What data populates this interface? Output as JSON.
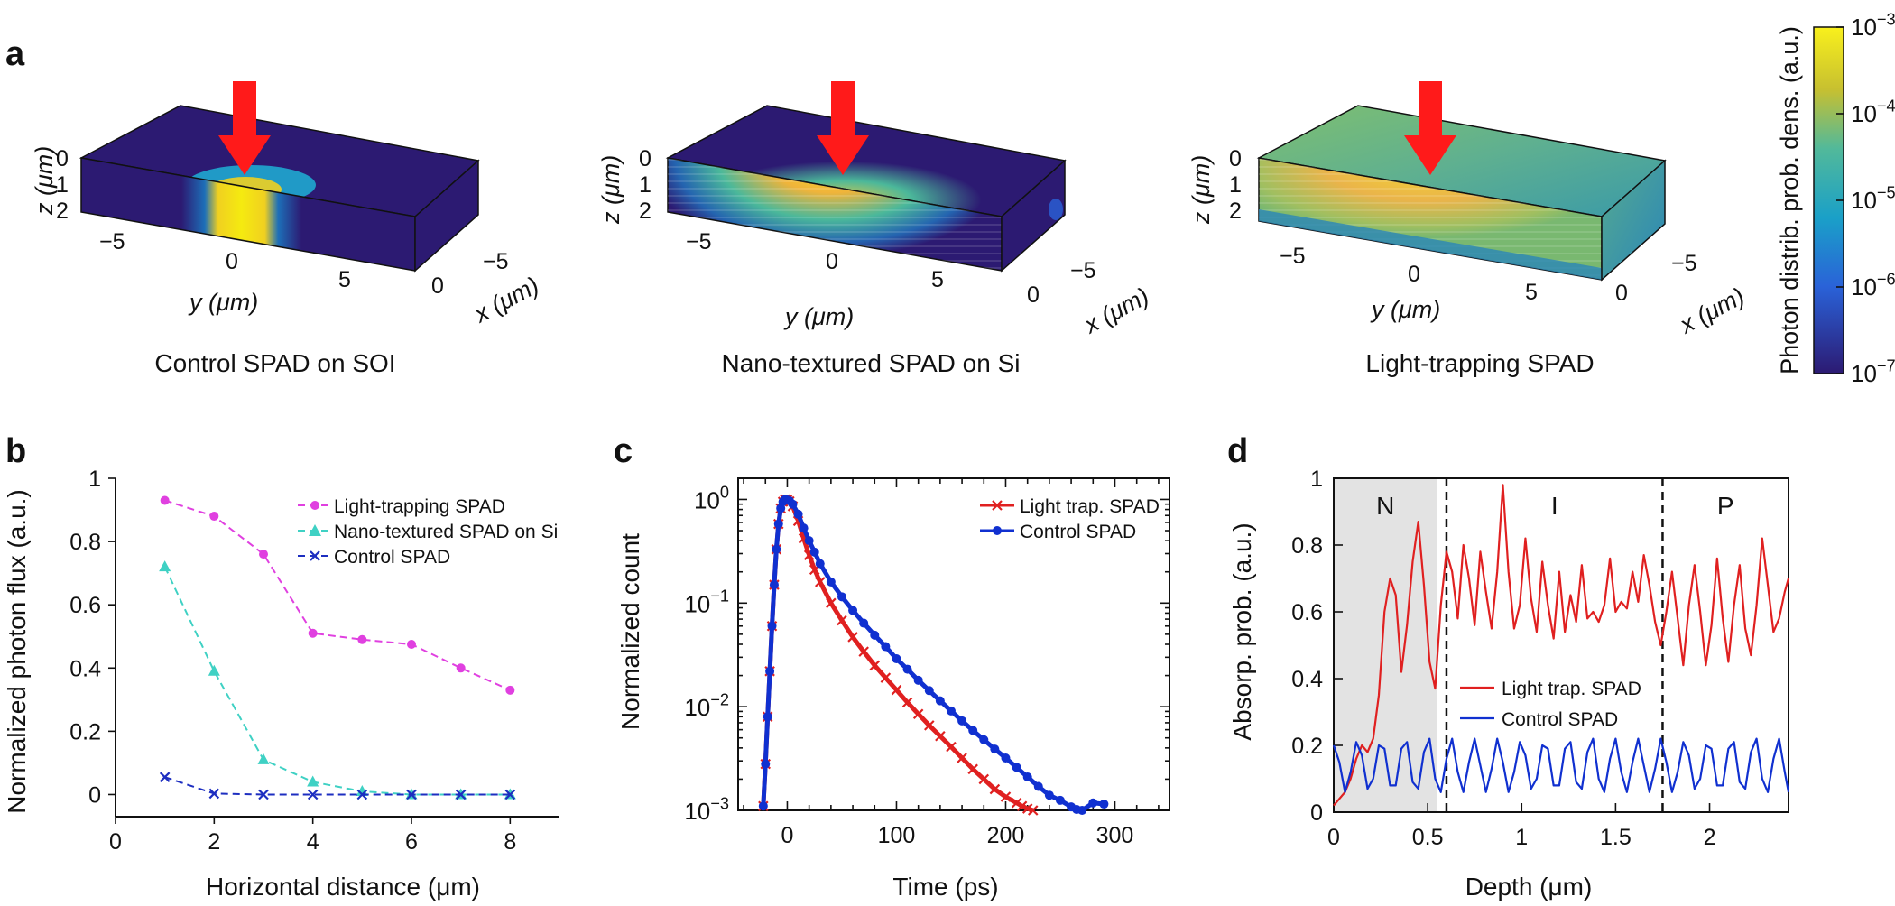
{
  "colors": {
    "magenta": "#e040e0",
    "teal": "#3fd1c4",
    "navy": "#1d2ec0",
    "red": "#e02020",
    "blue": "#1030d0",
    "dark": "#2c1a72",
    "yellow": "#f5ea10",
    "orange": "#f0b43a",
    "arrow": "#ff1a1a",
    "shade": "#e3e3e3"
  },
  "chart_data": [
    {
      "panel": "a",
      "type": "heatmap",
      "panel_label": "a",
      "subplots": [
        {
          "title": "Control SPAD on SOI",
          "zlabel": "z (μm)",
          "ylabel": "y (μm)",
          "xlabel": "x (μm)",
          "z_ticks": [
            "0",
            "1",
            "2"
          ],
          "y_ticks": [
            "−5",
            "0",
            "5"
          ],
          "x_ticks": [
            "−5",
            "0"
          ]
        },
        {
          "title": "Nano-textured SPAD on Si",
          "zlabel": "z (μm)",
          "ylabel": "y (μm)",
          "xlabel": "x (μm)",
          "z_ticks": [
            "0",
            "1",
            "2"
          ],
          "y_ticks": [
            "−5",
            "0",
            "5"
          ],
          "x_ticks": [
            "−5",
            "0"
          ]
        },
        {
          "title": "Light-trapping SPAD",
          "zlabel": "z (μm)",
          "ylabel": "y (μm)",
          "xlabel": "x (μm)",
          "z_ticks": [
            "0",
            "1",
            "2"
          ],
          "y_ticks": [
            "−5",
            "0",
            "5"
          ],
          "x_ticks": [
            "−5",
            "0"
          ]
        }
      ],
      "colorbar": {
        "label": "Photon distrib. prob. dens. (a.u.)",
        "scale": "log",
        "range": [
          1e-07,
          0.001
        ],
        "tick_labels": [
          {
            "base": "10",
            "exp": "−3"
          },
          {
            "base": "10",
            "exp": "−4"
          },
          {
            "base": "10",
            "exp": "−5"
          },
          {
            "base": "10",
            "exp": "−6"
          },
          {
            "base": "10",
            "exp": "−7"
          }
        ]
      }
    },
    {
      "panel": "b",
      "type": "line",
      "panel_label": "b",
      "xlabel": "Horizontal distance (μm)",
      "ylabel": "Normalized photon flux (a.u.)",
      "xlim": [
        0,
        9
      ],
      "ylim": [
        -0.07,
        1
      ],
      "x_ticks": [
        "0",
        "2",
        "4",
        "6",
        "8"
      ],
      "y_ticks": [
        "0",
        "0.2",
        "0.4",
        "0.6",
        "0.8",
        "1"
      ],
      "x": [
        1,
        2,
        3,
        4,
        5,
        6,
        7,
        8
      ],
      "series": [
        {
          "name": "Light-trapping SPAD",
          "marker": "circle",
          "values": [
            0.93,
            0.88,
            0.76,
            0.51,
            0.49,
            0.475,
            0.4,
            0.33
          ]
        },
        {
          "name": "Nano-textured SPAD on Si",
          "marker": "triangle",
          "values": [
            0.72,
            0.39,
            0.11,
            0.04,
            0.01,
            0.0,
            0.0,
            0.0
          ]
        },
        {
          "name": "Control SPAD",
          "marker": "x",
          "values": [
            0.055,
            0.003,
            0.0,
            0.0,
            0.0,
            0.0,
            0.0,
            0.0
          ]
        }
      ]
    },
    {
      "panel": "c",
      "type": "line",
      "panel_label": "c",
      "xlabel": "Time (ps)",
      "ylabel": "Normalized count",
      "yscale": "log",
      "xlim": [
        -45,
        350
      ],
      "ylim": [
        0.001,
        1.6
      ],
      "x_ticks": [
        "0",
        "100",
        "200",
        "300"
      ],
      "y_tick_labels": [
        {
          "base": "10",
          "exp": "0"
        },
        {
          "base": "10",
          "exp": "−1"
        },
        {
          "base": "10",
          "exp": "−2"
        },
        {
          "base": "10",
          "exp": "−3"
        }
      ],
      "series": [
        {
          "name": "Light trap. SPAD",
          "marker": "x",
          "x": [
            -22,
            -20,
            -18,
            -16,
            -14,
            -12,
            -10,
            -8,
            -6,
            -4,
            -2,
            0,
            2,
            5,
            10,
            15,
            20,
            25,
            30,
            40,
            50,
            60,
            70,
            80,
            90,
            100,
            110,
            120,
            130,
            140,
            150,
            160,
            170,
            180,
            190,
            200,
            210,
            215,
            220,
            225
          ],
          "values": [
            0.0011,
            0.0028,
            0.008,
            0.022,
            0.06,
            0.15,
            0.33,
            0.58,
            0.82,
            0.95,
            1.0,
            0.99,
            0.96,
            0.86,
            0.62,
            0.42,
            0.29,
            0.21,
            0.16,
            0.1,
            0.068,
            0.047,
            0.034,
            0.025,
            0.019,
            0.0145,
            0.011,
            0.0085,
            0.0066,
            0.0052,
            0.0041,
            0.0032,
            0.0025,
            0.002,
            0.0016,
            0.00135,
            0.00118,
            0.0011,
            0.00104,
            0.001
          ]
        },
        {
          "name": "Control SPAD",
          "marker": "circle",
          "x": [
            -22,
            -20,
            -18,
            -16,
            -14,
            -12,
            -10,
            -8,
            -6,
            -4,
            -2,
            0,
            2,
            5,
            10,
            15,
            20,
            25,
            30,
            40,
            50,
            60,
            70,
            80,
            90,
            100,
            110,
            120,
            130,
            140,
            150,
            160,
            170,
            180,
            190,
            200,
            210,
            220,
            230,
            240,
            250,
            260,
            265,
            270,
            280,
            290
          ],
          "values": [
            0.0011,
            0.0028,
            0.008,
            0.022,
            0.06,
            0.15,
            0.33,
            0.58,
            0.82,
            0.95,
            1.0,
            0.99,
            0.97,
            0.9,
            0.72,
            0.53,
            0.4,
            0.31,
            0.24,
            0.16,
            0.115,
            0.085,
            0.064,
            0.049,
            0.038,
            0.029,
            0.023,
            0.018,
            0.0143,
            0.0114,
            0.0091,
            0.0073,
            0.0059,
            0.0048,
            0.0039,
            0.0032,
            0.0026,
            0.0021,
            0.0017,
            0.0014,
            0.00125,
            0.00108,
            0.00102,
            0.001,
            0.00118,
            0.00115
          ]
        }
      ]
    },
    {
      "panel": "d",
      "type": "line",
      "panel_label": "d",
      "xlabel": "Depth (μm)",
      "ylabel": "Absorp. prob. (a.u.)",
      "xlim": [
        0,
        2.42
      ],
      "ylim": [
        0,
        1
      ],
      "x_ticks": [
        "0",
        "0.5",
        "1",
        "1.5",
        "2"
      ],
      "y_ticks": [
        "0",
        "0.2",
        "0.4",
        "0.6",
        "0.8",
        "1"
      ],
      "regions": [
        {
          "label": "N",
          "from": 0,
          "to": 0.55,
          "shaded": true
        },
        {
          "label": "I",
          "from": 0.6,
          "to": 1.75,
          "shaded": false
        },
        {
          "label": "P",
          "from": 1.75,
          "to": 2.42,
          "shaded": false
        }
      ],
      "dividers": [
        0.6,
        1.75
      ],
      "series": [
        {
          "name": "Light trap. SPAD",
          "x": [
            0.0,
            0.03,
            0.06,
            0.09,
            0.12,
            0.15,
            0.18,
            0.21,
            0.24,
            0.27,
            0.3,
            0.33,
            0.36,
            0.39,
            0.42,
            0.45,
            0.48,
            0.51,
            0.54,
            0.57,
            0.6,
            0.63,
            0.66,
            0.69,
            0.72,
            0.75,
            0.78,
            0.81,
            0.84,
            0.87,
            0.9,
            0.93,
            0.96,
            0.99,
            1.02,
            1.05,
            1.08,
            1.11,
            1.14,
            1.17,
            1.2,
            1.23,
            1.26,
            1.29,
            1.32,
            1.35,
            1.38,
            1.41,
            1.44,
            1.47,
            1.5,
            1.53,
            1.56,
            1.59,
            1.62,
            1.65,
            1.68,
            1.71,
            1.74,
            1.77,
            1.8,
            1.83,
            1.86,
            1.89,
            1.92,
            1.95,
            1.98,
            2.01,
            2.04,
            2.07,
            2.1,
            2.13,
            2.16,
            2.19,
            2.22,
            2.25,
            2.28,
            2.31,
            2.34,
            2.37,
            2.4,
            2.42
          ],
          "values": [
            0.02,
            0.04,
            0.06,
            0.1,
            0.16,
            0.2,
            0.18,
            0.22,
            0.35,
            0.6,
            0.7,
            0.65,
            0.42,
            0.56,
            0.75,
            0.87,
            0.68,
            0.45,
            0.37,
            0.62,
            0.78,
            0.72,
            0.58,
            0.8,
            0.7,
            0.56,
            0.78,
            0.66,
            0.55,
            0.72,
            0.98,
            0.72,
            0.55,
            0.62,
            0.82,
            0.64,
            0.54,
            0.75,
            0.62,
            0.52,
            0.72,
            0.54,
            0.65,
            0.57,
            0.74,
            0.58,
            0.6,
            0.57,
            0.62,
            0.76,
            0.6,
            0.63,
            0.61,
            0.72,
            0.63,
            0.77,
            0.68,
            0.57,
            0.5,
            0.6,
            0.72,
            0.58,
            0.44,
            0.62,
            0.74,
            0.6,
            0.44,
            0.56,
            0.76,
            0.58,
            0.45,
            0.62,
            0.74,
            0.55,
            0.47,
            0.62,
            0.82,
            0.68,
            0.54,
            0.58,
            0.66,
            0.7
          ]
        },
        {
          "name": "Control SPAD",
          "x": [
            0.0,
            0.03,
            0.06,
            0.09,
            0.12,
            0.15,
            0.18,
            0.21,
            0.24,
            0.27,
            0.3,
            0.33,
            0.36,
            0.39,
            0.42,
            0.45,
            0.48,
            0.51,
            0.54,
            0.57,
            0.6,
            0.63,
            0.66,
            0.69,
            0.72,
            0.75,
            0.78,
            0.81,
            0.84,
            0.87,
            0.9,
            0.93,
            0.96,
            0.99,
            1.02,
            1.05,
            1.08,
            1.11,
            1.14,
            1.17,
            1.2,
            1.23,
            1.26,
            1.29,
            1.32,
            1.35,
            1.38,
            1.41,
            1.44,
            1.47,
            1.5,
            1.53,
            1.56,
            1.59,
            1.62,
            1.65,
            1.68,
            1.71,
            1.74,
            1.77,
            1.8,
            1.83,
            1.86,
            1.89,
            1.92,
            1.95,
            1.98,
            2.01,
            2.04,
            2.07,
            2.1,
            2.13,
            2.16,
            2.19,
            2.22,
            2.25,
            2.28,
            2.31,
            2.34,
            2.37,
            2.4,
            2.42
          ],
          "values": [
            0.2,
            0.15,
            0.06,
            0.12,
            0.21,
            0.17,
            0.07,
            0.1,
            0.2,
            0.19,
            0.08,
            0.08,
            0.19,
            0.21,
            0.09,
            0.07,
            0.18,
            0.22,
            0.1,
            0.06,
            0.16,
            0.22,
            0.12,
            0.06,
            0.15,
            0.22,
            0.14,
            0.06,
            0.13,
            0.22,
            0.15,
            0.06,
            0.12,
            0.21,
            0.17,
            0.07,
            0.1,
            0.2,
            0.19,
            0.08,
            0.08,
            0.19,
            0.21,
            0.09,
            0.07,
            0.18,
            0.22,
            0.1,
            0.06,
            0.16,
            0.22,
            0.12,
            0.06,
            0.15,
            0.22,
            0.14,
            0.06,
            0.13,
            0.22,
            0.15,
            0.06,
            0.12,
            0.21,
            0.17,
            0.07,
            0.1,
            0.2,
            0.19,
            0.08,
            0.08,
            0.19,
            0.21,
            0.09,
            0.07,
            0.18,
            0.22,
            0.1,
            0.06,
            0.16,
            0.22,
            0.12,
            0.06
          ]
        }
      ]
    }
  ]
}
